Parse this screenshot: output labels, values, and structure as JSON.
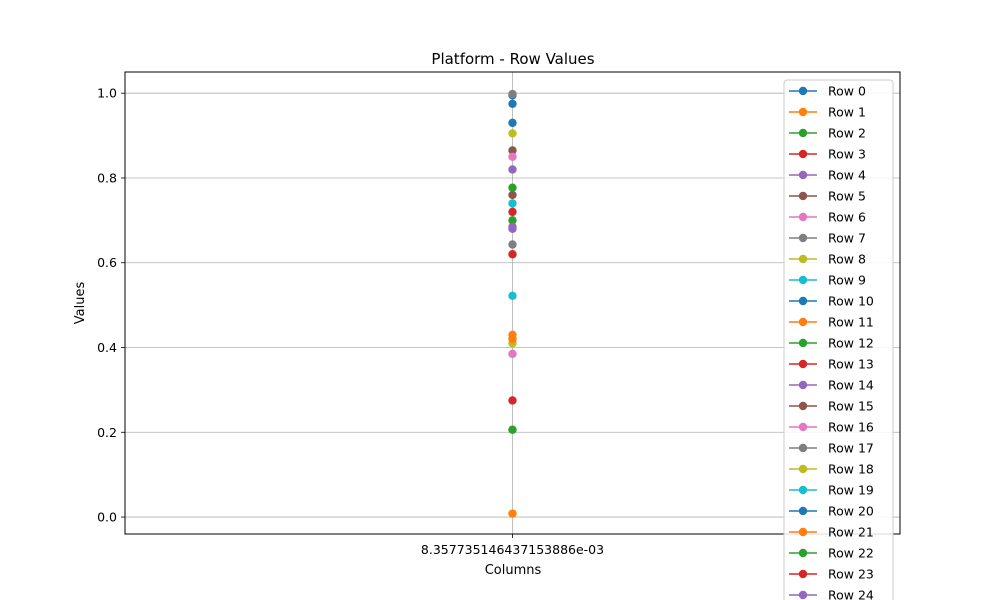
{
  "chart_data": {
    "type": "line",
    "title": "Platform - Row Values",
    "xlabel": "Columns",
    "ylabel": "Values",
    "categories": [
      "8.357735146437153886e-03"
    ],
    "ylim": [
      -0.04,
      1.05
    ],
    "yticks": [
      0.0,
      0.2,
      0.4,
      0.6,
      0.8,
      1.0
    ],
    "ytick_labels": [
      "0.0",
      "0.2",
      "0.4",
      "0.6",
      "0.8",
      "1.0"
    ],
    "grid": true,
    "legend_position": "upper-right",
    "marker": "circle",
    "series": [
      {
        "name": "Row 0",
        "color": "#1f77b4",
        "values": [
          0.995
        ]
      },
      {
        "name": "Row 1",
        "color": "#ff7f0e",
        "values": [
          0.008
        ]
      },
      {
        "name": "Row 2",
        "color": "#2ca02c",
        "values": [
          0.206
        ]
      },
      {
        "name": "Row 3",
        "color": "#d62728",
        "values": [
          0.275
        ]
      },
      {
        "name": "Row 4",
        "color": "#9467bd",
        "values": [
          0.82
        ]
      },
      {
        "name": "Row 5",
        "color": "#8c564b",
        "values": [
          0.76
        ]
      },
      {
        "name": "Row 6",
        "color": "#e377c2",
        "values": [
          0.385
        ]
      },
      {
        "name": "Row 7",
        "color": "#7f7f7f",
        "values": [
          0.643
        ]
      },
      {
        "name": "Row 8",
        "color": "#bcbd22",
        "values": [
          0.905
        ]
      },
      {
        "name": "Row 9",
        "color": "#17becf",
        "values": [
          0.522
        ]
      },
      {
        "name": "Row 10",
        "color": "#1f77b4",
        "values": [
          0.93
        ]
      },
      {
        "name": "Row 11",
        "color": "#ff7f0e",
        "values": [
          0.43
        ]
      },
      {
        "name": "Row 12",
        "color": "#2ca02c",
        "values": [
          0.777
        ]
      },
      {
        "name": "Row 13",
        "color": "#d62728",
        "values": [
          0.62
        ]
      },
      {
        "name": "Row 14",
        "color": "#9467bd",
        "values": [
          0.68
        ]
      },
      {
        "name": "Row 15",
        "color": "#8c564b",
        "values": [
          0.865
        ]
      },
      {
        "name": "Row 16",
        "color": "#e377c2",
        "values": [
          0.85
        ]
      },
      {
        "name": "Row 17",
        "color": "#7f7f7f",
        "values": [
          0.998
        ]
      },
      {
        "name": "Row 18",
        "color": "#bcbd22",
        "values": [
          0.41
        ]
      },
      {
        "name": "Row 19",
        "color": "#17becf",
        "values": [
          0.74
        ]
      },
      {
        "name": "Row 20",
        "color": "#1f77b4",
        "values": [
          0.975
        ]
      },
      {
        "name": "Row 21",
        "color": "#ff7f0e",
        "values": [
          0.42
        ]
      },
      {
        "name": "Row 22",
        "color": "#2ca02c",
        "values": [
          0.7
        ]
      },
      {
        "name": "Row 23",
        "color": "#d62728",
        "values": [
          0.72
        ]
      },
      {
        "name": "Row 24",
        "color": "#9467bd",
        "values": [
          0.685
        ]
      }
    ]
  }
}
